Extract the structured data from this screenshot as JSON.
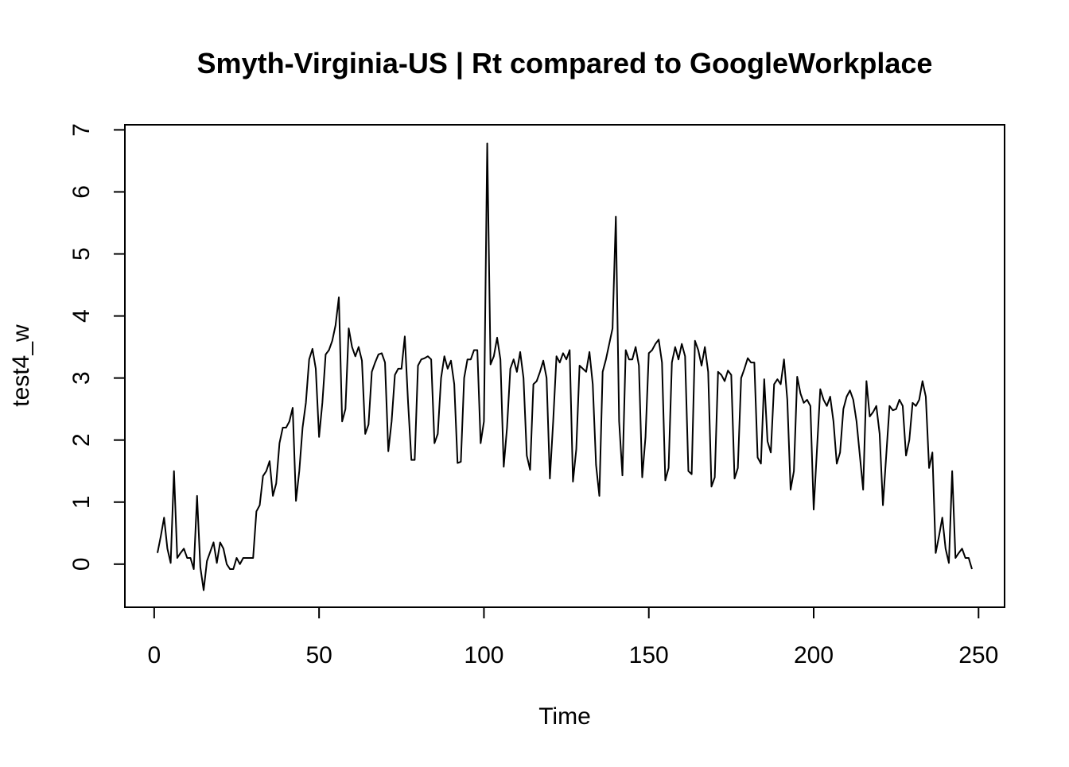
{
  "chart_data": {
    "type": "line",
    "title": "Smyth-Virginia-US | Rt compared to GoogleWorkplace",
    "xlabel": "Time",
    "ylabel": "test4_w",
    "xlim": [
      1,
      248
    ],
    "ylim": [
      -0.4,
      6.8
    ],
    "xticks": [
      0,
      50,
      100,
      150,
      200,
      250
    ],
    "yticks": [
      0,
      1,
      2,
      3,
      4,
      5,
      6,
      7
    ],
    "grid": false,
    "line_color": "#000000",
    "series": [
      {
        "x_start": 1,
        "x_step": 1,
        "values": [
          0.18,
          0.45,
          0.75,
          0.25,
          0.02,
          1.5,
          0.1,
          0.18,
          0.25,
          0.1,
          0.1,
          -0.08,
          1.1,
          -0.05,
          -0.42,
          0.05,
          0.2,
          0.35,
          0.02,
          0.35,
          0.25,
          0.0,
          -0.08,
          -0.08,
          0.1,
          0.0,
          0.1,
          0.1,
          0.1,
          0.1,
          0.85,
          0.95,
          1.42,
          1.5,
          1.66,
          1.1,
          1.3,
          1.95,
          2.2,
          2.2,
          2.3,
          2.52,
          1.02,
          1.5,
          2.2,
          2.6,
          3.3,
          3.47,
          3.15,
          2.05,
          2.6,
          3.38,
          3.45,
          3.6,
          3.85,
          4.3,
          2.3,
          2.5,
          3.8,
          3.5,
          3.35,
          3.5,
          3.28,
          2.1,
          2.25,
          3.1,
          3.25,
          3.38,
          3.4,
          3.25,
          1.82,
          2.3,
          3.05,
          3.15,
          3.15,
          3.67,
          2.6,
          1.68,
          1.68,
          3.2,
          3.3,
          3.32,
          3.35,
          3.3,
          1.95,
          2.1,
          3.0,
          3.35,
          3.15,
          3.28,
          2.9,
          1.63,
          1.65,
          3.0,
          3.3,
          3.3,
          3.45,
          3.45,
          1.95,
          2.3,
          6.78,
          3.22,
          3.35,
          3.65,
          3.3,
          1.57,
          2.2,
          3.15,
          3.3,
          3.1,
          3.42,
          3.0,
          1.75,
          1.52,
          2.9,
          2.95,
          3.1,
          3.28,
          3.0,
          1.38,
          2.3,
          3.35,
          3.25,
          3.4,
          3.3,
          3.45,
          1.33,
          1.85,
          3.2,
          3.15,
          3.1,
          3.42,
          2.9,
          1.6,
          1.1,
          3.1,
          3.3,
          3.55,
          3.8,
          5.6,
          2.3,
          1.43,
          3.45,
          3.3,
          3.3,
          3.5,
          3.2,
          1.4,
          2.05,
          3.4,
          3.45,
          3.55,
          3.62,
          3.25,
          1.35,
          1.55,
          3.25,
          3.5,
          3.3,
          3.55,
          3.35,
          1.5,
          1.45,
          3.6,
          3.45,
          3.2,
          3.5,
          3.1,
          1.25,
          1.4,
          3.1,
          3.05,
          2.95,
          3.12,
          3.05,
          1.38,
          1.55,
          3.0,
          3.15,
          3.32,
          3.25,
          3.25,
          1.72,
          1.62,
          2.98,
          1.98,
          1.8,
          2.9,
          2.98,
          2.9,
          3.3,
          2.65,
          1.2,
          1.5,
          3.02,
          2.75,
          2.6,
          2.65,
          2.55,
          0.88,
          1.85,
          2.82,
          2.65,
          2.55,
          2.7,
          2.3,
          1.62,
          1.8,
          2.5,
          2.7,
          2.8,
          2.65,
          2.3,
          1.75,
          1.2,
          2.95,
          2.38,
          2.45,
          2.55,
          2.1,
          0.95,
          1.75,
          2.55,
          2.48,
          2.5,
          2.65,
          2.55,
          1.75,
          2.0,
          2.6,
          2.55,
          2.65,
          2.95,
          2.7,
          1.55,
          1.8,
          0.18,
          0.45,
          0.75,
          0.25,
          0.02,
          1.5,
          0.1,
          0.18,
          0.25,
          0.1,
          0.1,
          -0.08
        ]
      }
    ]
  }
}
